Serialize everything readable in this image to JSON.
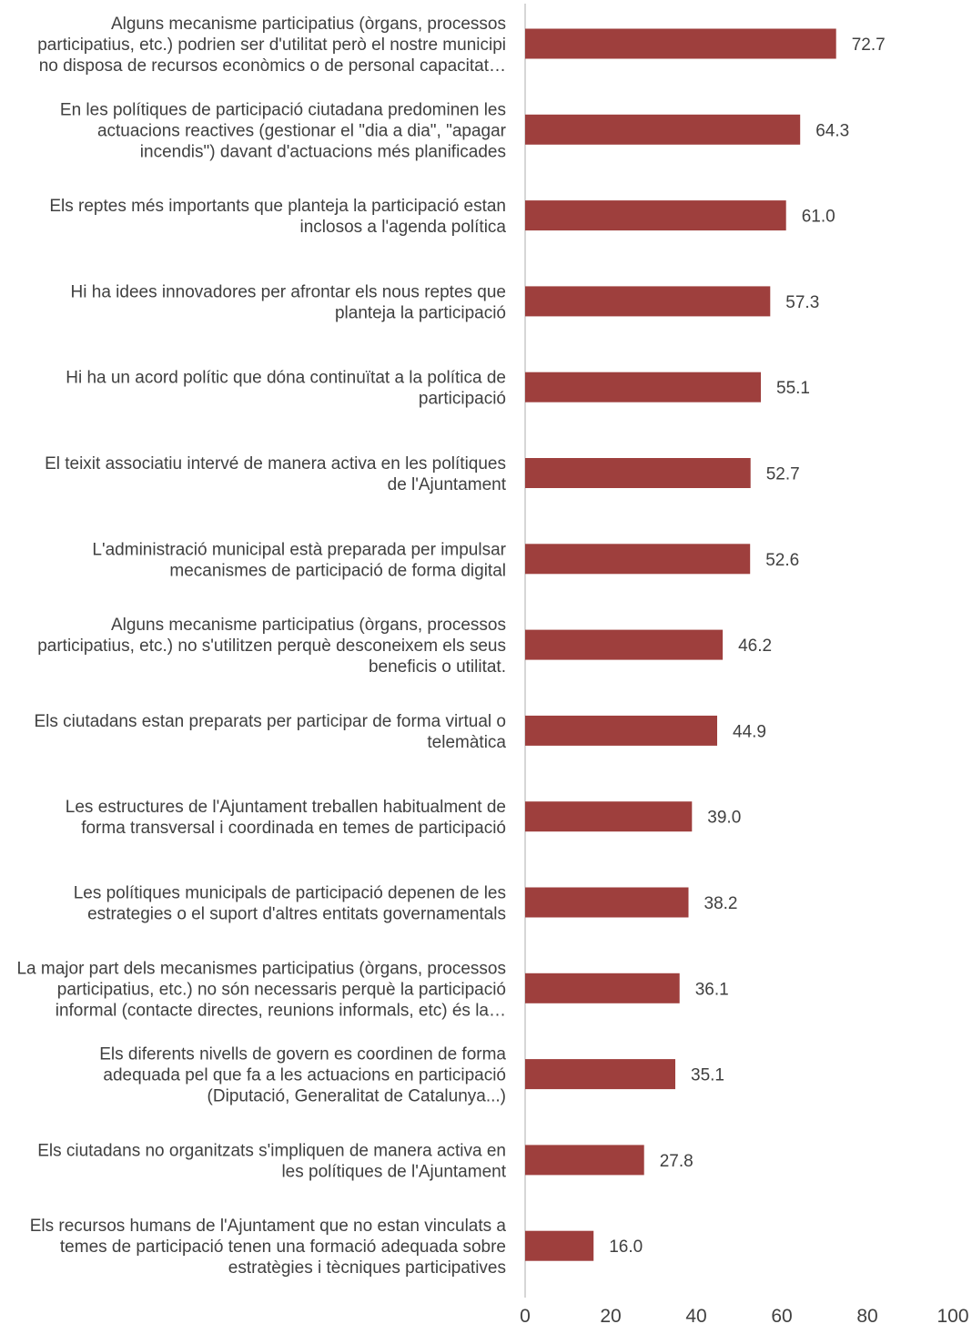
{
  "chart_data": {
    "type": "bar",
    "orientation": "horizontal",
    "categories": [
      "Alguns mecanisme participatius (òrgans, processos participatius, etc.) podrien ser d'utilitat però el nostre municipi no disposa de recursos econòmics o de personal capacitat…",
      "En les polítiques de participació ciutadana predominen les actuacions reactives (gestionar el \"dia a dia\", \"apagar incendis\") davant d'actuacions més planificades",
      "Els reptes més importants que planteja la participació estan inclosos a l'agenda política",
      "Hi ha idees innovadores per afrontar els nous reptes que planteja la participació",
      "Hi ha un acord polític que dóna continuïtat a la política de participació",
      "El teixit associatiu intervé de manera activa en les polítiques de l'Ajuntament",
      "L'administració municipal està preparada per impulsar mecanismes de participació de forma digital",
      "Alguns mecanisme participatius (òrgans, processos participatius, etc.) no s'utilitzen perquè desconeixem els seus beneficis o utilitat.",
      "Els ciutadans estan preparats per participar de forma virtual o telemàtica",
      "Les estructures de l'Ajuntament treballen habitualment de forma transversal i coordinada en temes de participació",
      "Les polítiques municipals de participació depenen de les estrategies o el suport d'altres entitats governamentals",
      "La major part dels mecanismes participatius (òrgans, processos participatius, etc.) no són necessaris perquè la participació informal (contacte directes, reunions informals, etc) és la…",
      "Els diferents nivells de govern es coordinen de forma adequada pel que fa a les actuacions en participació (Diputació, Generalitat de Catalunya...)",
      "Els ciutadans no organitzats s'impliquen de manera activa en les polítiques de l'Ajuntament",
      "Els recursos humans de l'Ajuntament que no estan vinculats a temes de participació tenen una formació adequada sobre estratègies i tècniques participatives"
    ],
    "category_lines": [
      [
        "Alguns mecanisme participatius (òrgans, processos",
        "participatius, etc.) podrien ser d'utilitat però el nostre municipi",
        "no disposa de recursos econòmics o de personal capacitat…"
      ],
      [
        "En les polítiques de participació ciutadana predominen les",
        "actuacions reactives (gestionar el \"dia a dia\", \"apagar",
        "incendis\") davant d'actuacions més planificades"
      ],
      [
        "Els reptes més importants que planteja la participació estan",
        "inclosos a l'agenda política"
      ],
      [
        "Hi ha idees innovadores per afrontar els nous reptes que",
        "planteja la participació"
      ],
      [
        "Hi ha un acord polític que dóna continuïtat a la política de",
        "participació"
      ],
      [
        "El teixit associatiu intervé de manera activa en les polítiques",
        "de l'Ajuntament"
      ],
      [
        "L'administració municipal està preparada per impulsar",
        "mecanismes de participació de forma digital"
      ],
      [
        "Alguns mecanisme participatius (òrgans, processos",
        "participatius, etc.) no s'utilitzen perquè desconeixem els seus",
        "beneficis o utilitat."
      ],
      [
        "Els ciutadans estan preparats per participar de forma virtual o",
        "telemàtica"
      ],
      [
        "Les estructures de l'Ajuntament treballen habitualment de",
        "forma transversal i coordinada en temes de participació"
      ],
      [
        "Les polítiques municipals de participació depenen de les",
        "estrategies o el suport d'altres entitats governamentals"
      ],
      [
        "La major part dels mecanismes participatius (òrgans, processos",
        "participatius, etc.) no són necessaris perquè la participació",
        "informal (contacte directes, reunions informals, etc) és la…"
      ],
      [
        "Els diferents nivells de govern es coordinen de forma",
        "adequada pel que fa a les actuacions en participació",
        "(Diputació, Generalitat de Catalunya...)"
      ],
      [
        "Els ciutadans no organitzats s'impliquen de manera activa en",
        "les polítiques de l'Ajuntament"
      ],
      [
        "Els recursos humans de l'Ajuntament que no estan vinculats a",
        "temes de participació tenen una formació adequada sobre",
        "estratègies i tècniques participatives"
      ]
    ],
    "values": [
      72.7,
      64.3,
      61.0,
      57.3,
      55.1,
      52.7,
      52.6,
      46.2,
      44.9,
      39.0,
      38.2,
      36.1,
      35.1,
      27.8,
      16.0
    ],
    "value_labels": [
      "72.7",
      "64.3",
      "61.0",
      "57.3",
      "55.1",
      "52.7",
      "52.6",
      "46.2",
      "44.9",
      "39.0",
      "38.2",
      "36.1",
      "35.1",
      "27.8",
      "16.0"
    ],
    "xlim": [
      0,
      100
    ],
    "xticks": [
      0,
      20,
      40,
      60,
      80,
      100
    ],
    "xtick_labels": [
      "0",
      "20",
      "40",
      "60",
      "80",
      "100"
    ],
    "title": "",
    "xlabel": "",
    "ylabel": "",
    "grid": false,
    "legend": "none",
    "bar_color": "#9e3f3d",
    "axis_color": "#c8c8c8",
    "text_color": "#404040"
  }
}
